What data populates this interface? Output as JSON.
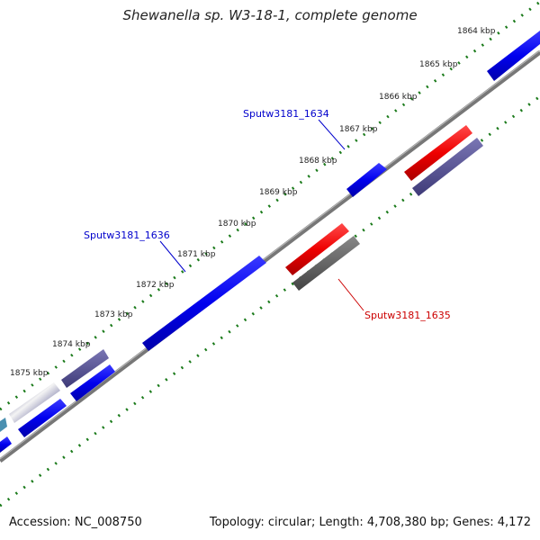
{
  "title": "Shewanella sp. W3-18-1, complete genome",
  "footer": {
    "accession": "Accession: NC_008750",
    "summary": "Topology: circular; Length: 4,708,380 bp; Genes: 4,172"
  },
  "ruler_labels": [
    "1864 kbp",
    "1865 kbp",
    "1866 kbp",
    "1867 kbp",
    "1868 kbp",
    "1869 kbp",
    "1870 kbp",
    "1871 kbp",
    "1872 kbp",
    "1873 kbp",
    "1874 kbp",
    "1875 kbp"
  ],
  "gene_labels": [
    {
      "text": "Sputw3181_1634",
      "color": "#0000cc"
    },
    {
      "text": "Sputw3181_1636",
      "color": "#0000cc"
    },
    {
      "text": "Sputw3181_1635",
      "color": "#cc0000"
    }
  ],
  "colors": {
    "backbone": "#777777",
    "ticks": "#1a7a1a",
    "forward_gene": "#0000ee",
    "reverse_gene": "#ee0000",
    "cog_purple": "#55508e",
    "cog_navy": "#0a0a70",
    "cog_gray": "#666666"
  }
}
